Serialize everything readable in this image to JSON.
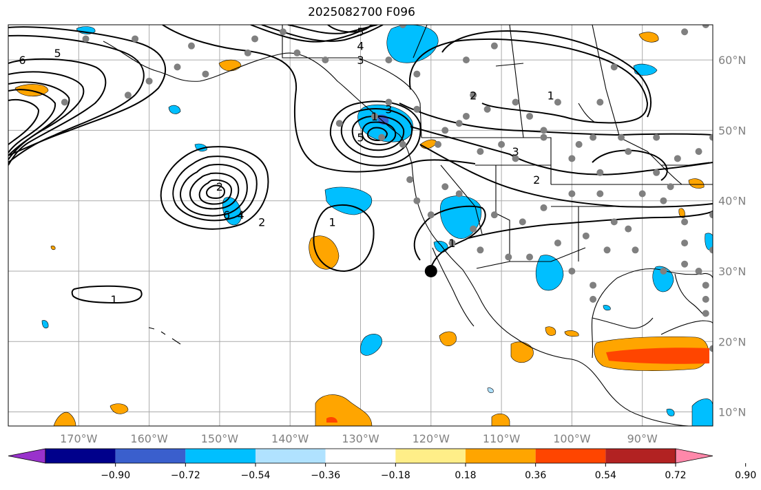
{
  "title": "2025082700 F096",
  "map": {
    "projection": "plate-carree",
    "lon_range": [
      -180,
      -80
    ],
    "lat_range": [
      8,
      65
    ],
    "gridlines": true,
    "lon_ticks": [
      {
        "value": -170,
        "label": "170°W"
      },
      {
        "value": -160,
        "label": "160°W"
      },
      {
        "value": -150,
        "label": "150°W"
      },
      {
        "value": -140,
        "label": "140°W"
      },
      {
        "value": -130,
        "label": "130°W"
      },
      {
        "value": -120,
        "label": "120°W"
      },
      {
        "value": -110,
        "label": "110°W"
      },
      {
        "value": -100,
        "label": "100°W"
      },
      {
        "value": -90,
        "label": "90°W"
      }
    ],
    "lat_ticks": [
      {
        "value": 60,
        "label": "60°N"
      },
      {
        "value": 50,
        "label": "50°N"
      },
      {
        "value": 40,
        "label": "40°N"
      },
      {
        "value": 30,
        "label": "30°N"
      },
      {
        "value": 20,
        "label": "20°N"
      },
      {
        "value": 10,
        "label": "10°N"
      }
    ],
    "marker": {
      "lon": -120,
      "lat": 30,
      "color": "#000000"
    },
    "station_color": "#808080",
    "stations": [
      {
        "lon": -169,
        "lat": 63
      },
      {
        "lon": -162,
        "lat": 63
      },
      {
        "lon": -156,
        "lat": 59
      },
      {
        "lon": -160,
        "lat": 57
      },
      {
        "lon": -154,
        "lat": 62
      },
      {
        "lon": -172,
        "lat": 54
      },
      {
        "lon": -163,
        "lat": 55
      },
      {
        "lon": -152,
        "lat": 58
      },
      {
        "lon": -146,
        "lat": 61
      },
      {
        "lon": -145,
        "lat": 63
      },
      {
        "lon": -141,
        "lat": 64
      },
      {
        "lon": -135,
        "lat": 60
      },
      {
        "lon": -139,
        "lat": 61
      },
      {
        "lon": -126,
        "lat": 60
      },
      {
        "lon": -124,
        "lat": 65
      },
      {
        "lon": -122,
        "lat": 58
      },
      {
        "lon": -114,
        "lat": 55
      },
      {
        "lon": -111,
        "lat": 62
      },
      {
        "lon": -115,
        "lat": 60
      },
      {
        "lon": -108,
        "lat": 54
      },
      {
        "lon": -106,
        "lat": 52
      },
      {
        "lon": -112,
        "lat": 53
      },
      {
        "lon": -102,
        "lat": 54
      },
      {
        "lon": -94,
        "lat": 59
      },
      {
        "lon": -96,
        "lat": 54
      },
      {
        "lon": -84,
        "lat": 64
      },
      {
        "lon": -81,
        "lat": 65
      },
      {
        "lon": -104,
        "lat": 50
      },
      {
        "lon": -118,
        "lat": 50
      },
      {
        "lon": -122,
        "lat": 53
      },
      {
        "lon": -126,
        "lat": 54
      },
      {
        "lon": -128,
        "lat": 52
      },
      {
        "lon": -133,
        "lat": 51
      },
      {
        "lon": -127,
        "lat": 49
      },
      {
        "lon": -124,
        "lat": 48
      },
      {
        "lon": -119,
        "lat": 48
      },
      {
        "lon": -116,
        "lat": 51
      },
      {
        "lon": -115,
        "lat": 52
      },
      {
        "lon": -113,
        "lat": 47
      },
      {
        "lon": -110,
        "lat": 48
      },
      {
        "lon": -108,
        "lat": 46
      },
      {
        "lon": -104,
        "lat": 49
      },
      {
        "lon": -99,
        "lat": 48
      },
      {
        "lon": -97,
        "lat": 49
      },
      {
        "lon": -100,
        "lat": 46
      },
      {
        "lon": -96,
        "lat": 44
      },
      {
        "lon": -93,
        "lat": 49
      },
      {
        "lon": -88,
        "lat": 49
      },
      {
        "lon": -85,
        "lat": 46
      },
      {
        "lon": -82,
        "lat": 47
      },
      {
        "lon": -80,
        "lat": 49
      },
      {
        "lon": -123,
        "lat": 43
      },
      {
        "lon": -122,
        "lat": 40
      },
      {
        "lon": -120,
        "lat": 38
      },
      {
        "lon": -118,
        "lat": 42
      },
      {
        "lon": -116,
        "lat": 41
      },
      {
        "lon": -114,
        "lat": 36
      },
      {
        "lon": -111,
        "lat": 38
      },
      {
        "lon": -107,
        "lat": 37
      },
      {
        "lon": -104,
        "lat": 39
      },
      {
        "lon": -100,
        "lat": 41
      },
      {
        "lon": -96,
        "lat": 41
      },
      {
        "lon": -94,
        "lat": 37
      },
      {
        "lon": -90,
        "lat": 41
      },
      {
        "lon": -87,
        "lat": 40
      },
      {
        "lon": -84,
        "lat": 37
      },
      {
        "lon": -80,
        "lat": 38
      },
      {
        "lon": -117,
        "lat": 34
      },
      {
        "lon": -113,
        "lat": 33
      },
      {
        "lon": -109,
        "lat": 32
      },
      {
        "lon": -106,
        "lat": 32
      },
      {
        "lon": -102,
        "lat": 34
      },
      {
        "lon": -98,
        "lat": 35
      },
      {
        "lon": -95,
        "lat": 33
      },
      {
        "lon": -91,
        "lat": 33
      },
      {
        "lon": -87,
        "lat": 30
      },
      {
        "lon": -84,
        "lat": 31
      },
      {
        "lon": -82,
        "lat": 30
      },
      {
        "lon": -80,
        "lat": 33
      },
      {
        "lon": -100,
        "lat": 30
      },
      {
        "lon": -97,
        "lat": 28
      },
      {
        "lon": -97,
        "lat": 26
      },
      {
        "lon": -81,
        "lat": 28
      },
      {
        "lon": -81,
        "lat": 26
      },
      {
        "lon": -81,
        "lat": 24
      },
      {
        "lon": -84,
        "lat": 34
      },
      {
        "lon": -78,
        "lat": 36
      },
      {
        "lon": -80,
        "lat": 19
      },
      {
        "lon": -92,
        "lat": 36
      },
      {
        "lon": -92,
        "lat": 47
      },
      {
        "lon": -88,
        "lat": 44
      },
      {
        "lon": -86,
        "lat": 42
      }
    ],
    "contour_labels": [
      {
        "text": "6",
        "lon": -178,
        "lat": 60
      },
      {
        "text": "5",
        "lon": -173,
        "lat": 61
      },
      {
        "text": "5",
        "lon": -130,
        "lat": 64
      },
      {
        "text": "4",
        "lon": -130,
        "lat": 62
      },
      {
        "text": "3",
        "lon": -130,
        "lat": 60
      },
      {
        "text": "3",
        "lon": -126,
        "lat": 53
      },
      {
        "text": "1",
        "lon": -128,
        "lat": 52
      },
      {
        "text": "5",
        "lon": -130,
        "lat": 49
      },
      {
        "text": "2",
        "lon": -150,
        "lat": 42
      },
      {
        "text": "6",
        "lon": -149,
        "lat": 38
      },
      {
        "text": "4",
        "lon": -147,
        "lat": 38
      },
      {
        "text": "2",
        "lon": -144,
        "lat": 37
      },
      {
        "text": "1",
        "lon": -134,
        "lat": 37
      },
      {
        "text": "1",
        "lon": -117,
        "lat": 34
      },
      {
        "text": "2",
        "lon": -114,
        "lat": 55
      },
      {
        "text": "1",
        "lon": -103,
        "lat": 55
      },
      {
        "text": "3",
        "lon": -108,
        "lat": 47
      },
      {
        "text": "2",
        "lon": -105,
        "lat": 43
      },
      {
        "text": "1",
        "lon": -165,
        "lat": 26
      }
    ],
    "colorbar": {
      "labels": [
        "−0.90",
        "−0.72",
        "−0.54",
        "−0.36",
        "−0.18",
        "0.18",
        "0.36",
        "0.54",
        "0.72",
        "0.90"
      ],
      "colors": [
        "#9932CC",
        "#00008B",
        "#3A5FCD",
        "#00BFFF",
        "#B0E2FF",
        "#FFFFFF",
        "#FFEE88",
        "#FFA500",
        "#FF4500",
        "#B22222",
        "#FF88AA"
      ]
    }
  }
}
